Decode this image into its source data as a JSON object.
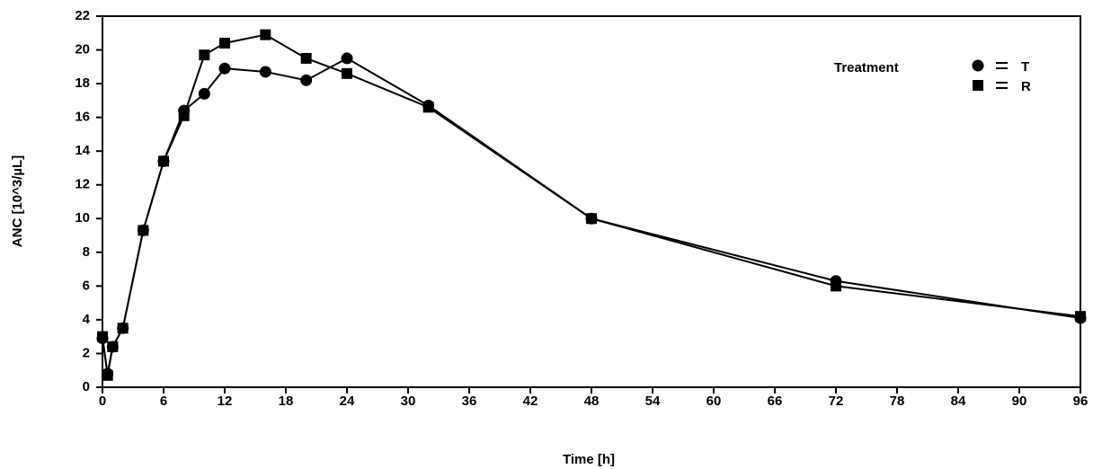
{
  "chart_data": {
    "type": "line",
    "x_label": "Time  [h]",
    "y_label": "ANC  [10^3/µL]",
    "legend_title": "Treatment",
    "x": [
      0,
      0.5,
      1,
      2,
      4,
      6,
      8,
      10,
      12,
      16,
      20,
      24,
      32,
      48,
      72,
      96
    ],
    "series": [
      {
        "name": "T",
        "marker": "circle",
        "color": "#000000",
        "values": [
          2.9,
          0.8,
          2.4,
          3.5,
          9.3,
          13.4,
          16.4,
          17.4,
          18.9,
          18.7,
          18.2,
          19.5,
          16.7,
          10.0,
          6.3,
          4.1
        ]
      },
      {
        "name": "R",
        "marker": "square",
        "color": "#000000",
        "values": [
          3.0,
          0.7,
          2.4,
          3.5,
          9.3,
          13.4,
          16.1,
          19.7,
          20.4,
          20.9,
          19.5,
          18.6,
          16.6,
          10.0,
          6.0,
          4.2
        ]
      }
    ],
    "xlim": [
      0,
      96
    ],
    "xticks": [
      0,
      6,
      12,
      18,
      24,
      30,
      36,
      42,
      48,
      54,
      60,
      66,
      72,
      78,
      84,
      90,
      96
    ],
    "ylim": [
      0,
      22
    ],
    "yticks": [
      0,
      2,
      4,
      6,
      8,
      10,
      12,
      14,
      16,
      18,
      20,
      22
    ],
    "legend": "upper right"
  }
}
